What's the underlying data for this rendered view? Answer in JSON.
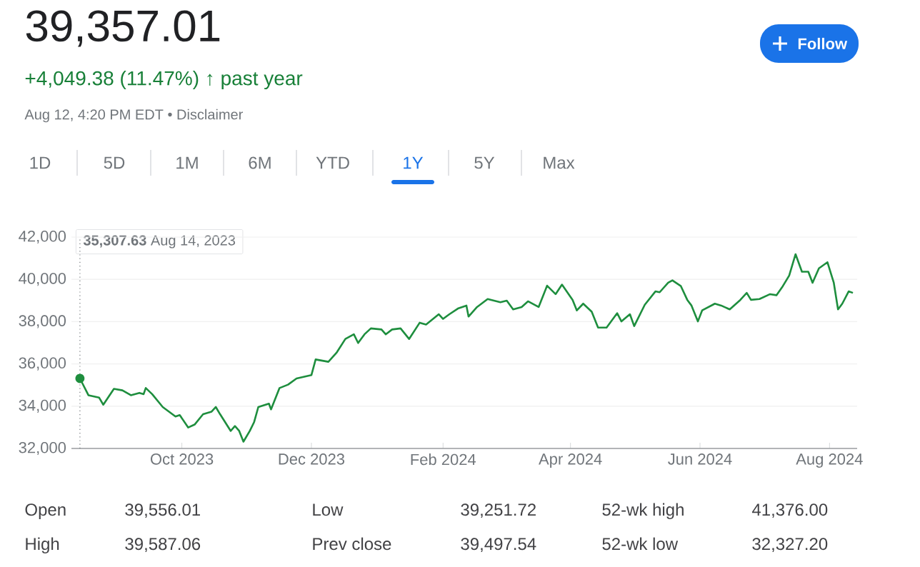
{
  "chart_data": {
    "type": "line",
    "title": "39,357.01",
    "subtitle": "+4,049.38 (11.47%) ↑ past year",
    "x": [
      "2023-08-14",
      "2023-08-18",
      "2023-08-23",
      "2023-08-25",
      "2023-08-30",
      "2023-09-03",
      "2023-09-07",
      "2023-09-11",
      "2023-09-13",
      "2023-09-14",
      "2023-09-17",
      "2023-09-22",
      "2023-09-28",
      "2023-09-30",
      "2023-10-04",
      "2023-10-07",
      "2023-10-11",
      "2023-10-15",
      "2023-10-17",
      "2023-10-19",
      "2023-10-24",
      "2023-10-26",
      "2023-10-28",
      "2023-10-30",
      "2023-11-02",
      "2023-11-04",
      "2023-11-06",
      "2023-11-11",
      "2023-11-12",
      "2023-11-16",
      "2023-11-20",
      "2023-11-24",
      "2023-12-01",
      "2023-12-03",
      "2023-12-09",
      "2023-12-13",
      "2023-12-17",
      "2023-12-21",
      "2023-12-23",
      "2023-12-26",
      "2023-12-29",
      "2024-01-03",
      "2024-01-05",
      "2024-01-08",
      "2024-01-12",
      "2024-01-16",
      "2024-01-21",
      "2024-01-24",
      "2024-01-30",
      "2024-02-01",
      "2024-02-04",
      "2024-02-08",
      "2024-02-12",
      "2024-02-13",
      "2024-02-17",
      "2024-02-22",
      "2024-02-28",
      "2024-03-02",
      "2024-03-05",
      "2024-03-09",
      "2024-03-12",
      "2024-03-17",
      "2024-03-21",
      "2024-03-25",
      "2024-03-28",
      "2024-04-02",
      "2024-04-04",
      "2024-04-07",
      "2024-04-11",
      "2024-04-14",
      "2024-04-18",
      "2024-04-23",
      "2024-04-25",
      "2024-04-29",
      "2024-05-01",
      "2024-05-06",
      "2024-05-11",
      "2024-05-13",
      "2024-05-17",
      "2024-05-19",
      "2024-05-23",
      "2024-05-26",
      "2024-05-28",
      "2024-05-31",
      "2024-06-02",
      "2024-06-08",
      "2024-06-11",
      "2024-06-15",
      "2024-06-20",
      "2024-06-23",
      "2024-06-25",
      "2024-06-29",
      "2024-07-04",
      "2024-07-07",
      "2024-07-10",
      "2024-07-13",
      "2024-07-16",
      "2024-07-19",
      "2024-07-22",
      "2024-07-24",
      "2024-07-27",
      "2024-07-31",
      "2024-08-03",
      "2024-08-05",
      "2024-08-07",
      "2024-08-10",
      "2024-08-12"
    ],
    "ref_lines": [
      {
        "axis": "x",
        "value": "2023-08-14",
        "color": "#70757a",
        "line_style": "dotted"
      }
    ],
    "series": [
      {
        "color": "#1e8e3e",
        "values": [
          35310,
          34520,
          34410,
          34070,
          34820,
          34750,
          34520,
          34630,
          34570,
          34860,
          34570,
          33960,
          33510,
          33580,
          32990,
          33130,
          33620,
          33740,
          33960,
          33620,
          32830,
          33060,
          32830,
          32320,
          32830,
          33240,
          33960,
          34120,
          33850,
          34860,
          35020,
          35310,
          35470,
          36210,
          36100,
          36550,
          37180,
          37400,
          36990,
          37400,
          37680,
          37630,
          37400,
          37630,
          37680,
          37180,
          37950,
          37860,
          38350,
          38130,
          38350,
          38620,
          38760,
          38240,
          38690,
          39070,
          38920,
          38990,
          38580,
          38690,
          38960,
          38690,
          39700,
          39300,
          39750,
          39030,
          38530,
          38850,
          38470,
          37720,
          37720,
          38400,
          38010,
          38350,
          37790,
          38800,
          39430,
          39390,
          39840,
          39950,
          39680,
          39030,
          38760,
          38010,
          38530,
          38850,
          38760,
          38580,
          39030,
          39360,
          39030,
          39070,
          39300,
          39250,
          39680,
          40180,
          41190,
          40360,
          40360,
          39840,
          40520,
          40810,
          39840,
          38580,
          38850,
          39430,
          39360
        ]
      }
    ],
    "xlim": [
      "2023-08-10",
      "2024-08-14"
    ],
    "xticks": [
      {
        "value": "2023-10-01",
        "label": "Oct 2023"
      },
      {
        "value": "2023-12-01",
        "label": "Dec 2023"
      },
      {
        "value": "2024-02-01",
        "label": "Feb 2024"
      },
      {
        "value": "2024-04-01",
        "label": "Apr 2024"
      },
      {
        "value": "2024-06-01",
        "label": "Jun 2024"
      },
      {
        "value": "2024-08-01",
        "label": "Aug 2024"
      }
    ],
    "ylim": [
      32000,
      42000
    ],
    "yticks": [
      {
        "value": 32000,
        "label": "32,000"
      },
      {
        "value": 34000,
        "label": "34,000"
      },
      {
        "value": 36000,
        "label": "36,000"
      },
      {
        "value": 38000,
        "label": "38,000"
      },
      {
        "value": 40000,
        "label": "40,000"
      },
      {
        "value": 42000,
        "label": "42,000"
      }
    ],
    "grid": "y",
    "annotations": [
      "Aug 12, 4:20 PM EDT • Disclaimer",
      "1D",
      "5D",
      "1M",
      "6M",
      "YTD",
      "1Y",
      "5Y",
      "Max",
      "Follow",
      "Open",
      "39,556.01",
      "High",
      "39,587.06",
      "Low",
      "39,251.72",
      "Prev close",
      "39,497.54",
      "52-wk high",
      "41,376.00",
      "52-wk low",
      "32,327.20",
      "**35,307.63** Aug 14, 2023"
    ]
  }
}
